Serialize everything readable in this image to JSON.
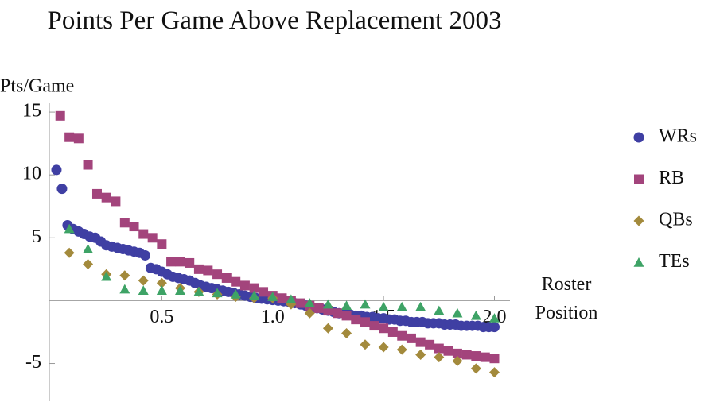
{
  "chart_data": {
    "type": "scatter",
    "title": "Points Per Game Above Replacement 2003",
    "y_label": "Pts/Game",
    "x_label": "Roster Position",
    "xlim": [
      0,
      2.07
    ],
    "ylim": [
      -8,
      15.7
    ],
    "xticks": [
      {
        "value": 0.5,
        "label": "0.5"
      },
      {
        "value": 1.0,
        "label": "1.0"
      },
      {
        "value": 1.5,
        "label": "1.5"
      },
      {
        "value": 2.0,
        "label": "2.0"
      }
    ],
    "yticks": [
      -5,
      5,
      10,
      15
    ],
    "legend": "right",
    "series": [
      {
        "name": "WRs",
        "color": "#3f3fa3",
        "marker": "circle",
        "x": [
          0.025,
          0.05,
          0.075,
          0.1,
          0.125,
          0.15,
          0.175,
          0.2,
          0.225,
          0.25,
          0.275,
          0.3,
          0.325,
          0.35,
          0.375,
          0.4,
          0.425,
          0.45,
          0.475,
          0.5,
          0.525,
          0.55,
          0.575,
          0.6,
          0.625,
          0.65,
          0.675,
          0.7,
          0.725,
          0.75,
          0.775,
          0.8,
          0.825,
          0.85,
          0.875,
          0.9,
          0.925,
          0.95,
          0.975,
          1.0,
          1.025,
          1.05,
          1.075,
          1.1,
          1.125,
          1.15,
          1.175,
          1.2,
          1.225,
          1.25,
          1.275,
          1.3,
          1.325,
          1.35,
          1.375,
          1.4,
          1.425,
          1.45,
          1.475,
          1.5,
          1.525,
          1.55,
          1.575,
          1.6,
          1.625,
          1.65,
          1.675,
          1.7,
          1.725,
          1.75,
          1.775,
          1.8,
          1.825,
          1.85,
          1.875,
          1.9,
          1.925,
          1.95,
          1.975,
          2.0
        ],
        "values": [
          10.4,
          8.9,
          6.0,
          5.7,
          5.5,
          5.3,
          5.1,
          5.0,
          4.7,
          4.4,
          4.3,
          4.2,
          4.1,
          4.0,
          3.9,
          3.8,
          3.6,
          2.6,
          2.5,
          2.3,
          2.1,
          1.9,
          1.8,
          1.7,
          1.6,
          1.4,
          1.2,
          1.1,
          1.0,
          0.9,
          0.8,
          0.7,
          0.6,
          0.5,
          0.4,
          0.3,
          0.2,
          0.15,
          0.1,
          0.05,
          0,
          -0.05,
          -0.1,
          -0.2,
          -0.3,
          -0.4,
          -0.5,
          -0.6,
          -0.7,
          -0.8,
          -0.9,
          -1.0,
          -1.0,
          -1.1,
          -1.2,
          -1.2,
          -1.3,
          -1.3,
          -1.4,
          -1.4,
          -1.5,
          -1.5,
          -1.6,
          -1.6,
          -1.7,
          -1.7,
          -1.7,
          -1.8,
          -1.8,
          -1.8,
          -1.9,
          -1.9,
          -1.9,
          -2.0,
          -2.0,
          -2.0,
          -2.0,
          -2.1,
          -2.1,
          -2.1
        ]
      },
      {
        "name": "RB",
        "color": "#a3447c",
        "marker": "square",
        "x": [
          0.042,
          0.083,
          0.125,
          0.167,
          0.208,
          0.25,
          0.292,
          0.333,
          0.375,
          0.417,
          0.458,
          0.5,
          0.542,
          0.583,
          0.625,
          0.667,
          0.708,
          0.75,
          0.792,
          0.833,
          0.875,
          0.917,
          0.958,
          1.0,
          1.042,
          1.083,
          1.125,
          1.167,
          1.208,
          1.25,
          1.292,
          1.333,
          1.375,
          1.417,
          1.458,
          1.5,
          1.542,
          1.583,
          1.625,
          1.667,
          1.708,
          1.75,
          1.792,
          1.833,
          1.875,
          1.917,
          1.958,
          2.0
        ],
        "values": [
          14.7,
          13.0,
          12.9,
          10.8,
          8.5,
          8.2,
          7.9,
          6.2,
          5.9,
          5.3,
          5.0,
          4.5,
          3.1,
          3.1,
          3.0,
          2.5,
          2.4,
          2.1,
          1.8,
          1.5,
          1.2,
          1.0,
          0.7,
          0.4,
          0.2,
          0,
          -0.2,
          -0.4,
          -0.6,
          -0.8,
          -1.0,
          -1.2,
          -1.5,
          -1.7,
          -2.0,
          -2.2,
          -2.5,
          -2.8,
          -3.0,
          -3.3,
          -3.5,
          -3.8,
          -4.0,
          -4.2,
          -4.3,
          -4.4,
          -4.5,
          -4.6
        ]
      },
      {
        "name": "QBs",
        "color": "#a38a3c",
        "marker": "diamond",
        "x": [
          0.083,
          0.167,
          0.25,
          0.333,
          0.417,
          0.5,
          0.583,
          0.667,
          0.75,
          0.833,
          0.917,
          1.0,
          1.083,
          1.167,
          1.25,
          1.333,
          1.417,
          1.5,
          1.583,
          1.667,
          1.75,
          1.833,
          1.917,
          2.0
        ],
        "values": [
          3.8,
          2.9,
          2.1,
          2.0,
          1.6,
          1.4,
          1.0,
          0.7,
          0.5,
          0.3,
          0.2,
          0.2,
          -0.3,
          -1.0,
          -2.2,
          -2.6,
          -3.5,
          -3.7,
          -3.9,
          -4.3,
          -4.5,
          -4.8,
          -5.4,
          -5.7
        ]
      },
      {
        "name": "TEs",
        "color": "#3ea366",
        "marker": "triangle",
        "x": [
          0.083,
          0.167,
          0.25,
          0.333,
          0.417,
          0.5,
          0.583,
          0.667,
          0.75,
          0.833,
          0.917,
          1.0,
          1.083,
          1.167,
          1.25,
          1.333,
          1.417,
          1.5,
          1.583,
          1.667,
          1.75,
          1.833,
          1.917,
          2.0
        ],
        "values": [
          5.7,
          4.1,
          1.9,
          0.9,
          0.8,
          0.8,
          0.8,
          0.7,
          0.6,
          0.5,
          0.4,
          0.3,
          0.1,
          -0.2,
          -0.3,
          -0.4,
          -0.3,
          -0.5,
          -0.5,
          -0.5,
          -0.8,
          -1.0,
          -1.2,
          -1.4
        ]
      }
    ]
  }
}
